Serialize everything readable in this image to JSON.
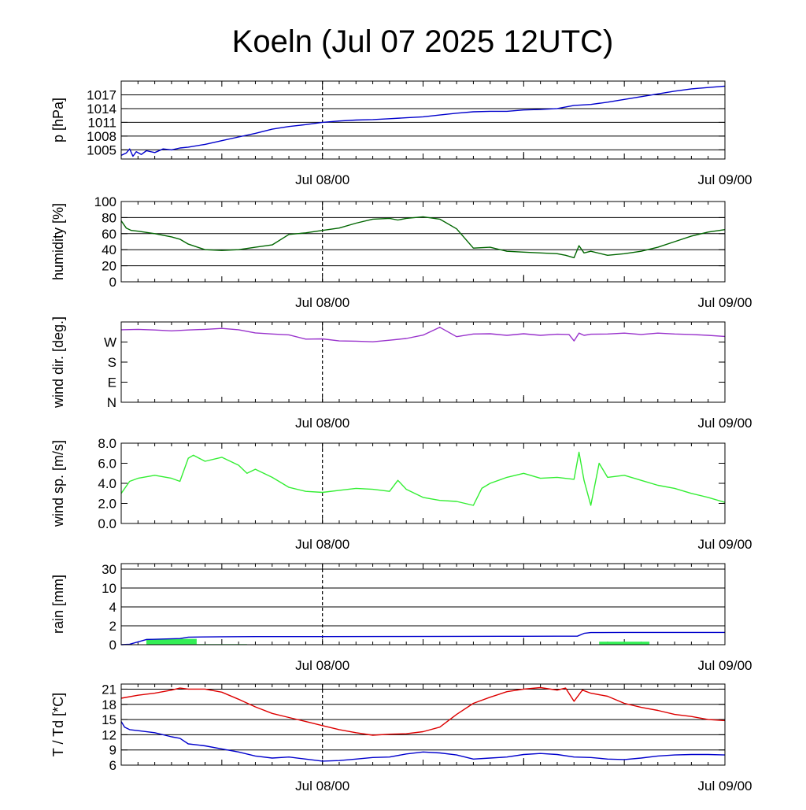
{
  "title": "Koeln (Jul 07 2025 12UTC)",
  "chart_data": [
    {
      "id": "pressure",
      "type": "line",
      "ylabel": "p [hPa]",
      "yticks": [
        "1005",
        "1008",
        "1011",
        "1014",
        "1017"
      ],
      "ytick_values": [
        1005,
        1008,
        1011,
        1014,
        1017
      ],
      "ylim": [
        1003,
        1020
      ],
      "xlim": [
        0,
        36
      ],
      "xtick_labels": [
        "Jul 08/00",
        "Jul 09/00"
      ],
      "xtick_positions": [
        12,
        36
      ],
      "grid": true,
      "series": [
        {
          "color": "#0000cc",
          "x": [
            0,
            0.3,
            0.5,
            0.7,
            0.9,
            1.2,
            1.5,
            2,
            2.5,
            3,
            3.5,
            4,
            5,
            6,
            7,
            8,
            9,
            10,
            11,
            12,
            13,
            14,
            15,
            16,
            17,
            18,
            19,
            20,
            21,
            22,
            23,
            24,
            25,
            26,
            27,
            28,
            29,
            30,
            31,
            32,
            33,
            34,
            35,
            36
          ],
          "y": [
            1003.8,
            1004.3,
            1005.2,
            1003.6,
            1004.6,
            1004.0,
            1004.8,
            1004.4,
            1005.2,
            1005.0,
            1005.4,
            1005.6,
            1006.2,
            1007.0,
            1007.8,
            1008.6,
            1009.5,
            1010.1,
            1010.5,
            1011.0,
            1011.3,
            1011.5,
            1011.6,
            1011.8,
            1012.0,
            1012.2,
            1012.6,
            1013.0,
            1013.3,
            1013.4,
            1013.4,
            1013.7,
            1013.8,
            1014.0,
            1014.7,
            1014.9,
            1015.4,
            1016.0,
            1016.6,
            1017.2,
            1017.8,
            1018.3,
            1018.6,
            1018.9
          ]
        }
      ]
    },
    {
      "id": "humidity",
      "type": "line",
      "ylabel": "humidity [%]",
      "yticks": [
        "0",
        "20",
        "40",
        "60",
        "80",
        "100"
      ],
      "ytick_values": [
        0,
        20,
        40,
        60,
        80,
        100
      ],
      "ylim": [
        0,
        100
      ],
      "xlim": [
        0,
        36
      ],
      "xtick_labels": [
        "Jul 08/00",
        "Jul 09/00"
      ],
      "xtick_positions": [
        12,
        36
      ],
      "grid": true,
      "series": [
        {
          "color": "#006600",
          "x": [
            0,
            0.3,
            0.6,
            1,
            2,
            3,
            3.5,
            4,
            5,
            6,
            7,
            8,
            9,
            10,
            11,
            12,
            13,
            14,
            15,
            16,
            16.5,
            17,
            18,
            19,
            20,
            21,
            22,
            23,
            24,
            25,
            26,
            26.5,
            27,
            27.3,
            27.6,
            28,
            29,
            30,
            31,
            32,
            33,
            34,
            35,
            36
          ],
          "y": [
            76,
            67,
            64,
            63,
            60,
            56,
            53,
            47,
            40,
            39,
            40,
            43,
            46,
            59,
            61,
            64,
            67,
            73,
            78,
            79,
            77,
            79,
            81,
            78,
            66,
            42,
            43,
            38,
            37,
            36,
            35,
            33,
            30,
            45,
            36,
            38,
            33,
            35,
            38,
            43,
            50,
            57,
            62,
            65
          ]
        }
      ]
    },
    {
      "id": "wind_direction",
      "type": "line",
      "ylabel": "wind dir. [deg.]",
      "yticks": [
        "N",
        "E",
        "S",
        "W"
      ],
      "ytick_values": [
        0,
        90,
        180,
        270
      ],
      "ylim": [
        0,
        360
      ],
      "xlim": [
        0,
        36
      ],
      "xtick_labels": [
        "Jul 08/00",
        "Jul 09/00"
      ],
      "xtick_positions": [
        12,
        36
      ],
      "grid": false,
      "series": [
        {
          "color": "#9933cc",
          "x": [
            0,
            1,
            2,
            3,
            4,
            5,
            6,
            7,
            8,
            9,
            10,
            11,
            12,
            13,
            14,
            15,
            16,
            17,
            18,
            19,
            20,
            21,
            22,
            23,
            24,
            25,
            26,
            26.7,
            27,
            27.3,
            27.6,
            28,
            29,
            30,
            31,
            32,
            33,
            34,
            35,
            36
          ],
          "y": [
            325,
            327,
            324,
            320,
            324,
            327,
            331,
            325,
            311,
            306,
            302,
            283,
            284,
            275,
            274,
            271,
            278,
            286,
            301,
            336,
            294,
            306,
            307,
            300,
            307,
            300,
            305,
            304,
            275,
            310,
            300,
            305,
            306,
            310,
            304,
            310,
            306,
            304,
            300,
            295
          ]
        }
      ]
    },
    {
      "id": "wind_speed",
      "type": "line",
      "ylabel": "wind sp. [m/s]",
      "yticks": [
        "0.0",
        "2.0",
        "4.0",
        "6.0",
        "8.0"
      ],
      "ytick_values": [
        0,
        2,
        4,
        6,
        8
      ],
      "ylim": [
        0,
        8
      ],
      "xlim": [
        0,
        36
      ],
      "xtick_labels": [
        "Jul 08/00",
        "Jul 09/00"
      ],
      "xtick_positions": [
        12,
        36
      ],
      "grid": false,
      "series": [
        {
          "color": "#33ee33",
          "x": [
            0,
            0.5,
            1,
            2,
            3,
            3.5,
            4,
            4.3,
            5,
            6,
            7,
            7.5,
            8,
            9,
            10,
            11,
            12,
            13,
            14,
            15,
            16,
            16.5,
            17,
            18,
            19,
            20,
            21,
            21.5,
            22,
            23,
            24,
            25,
            26,
            27,
            27.3,
            27.6,
            28,
            28.5,
            29,
            30,
            31,
            32,
            33,
            34,
            35,
            36
          ],
          "y": [
            3.0,
            4.2,
            4.5,
            4.8,
            4.5,
            4.2,
            6.5,
            6.8,
            6.2,
            6.6,
            5.8,
            5.0,
            5.4,
            4.6,
            3.6,
            3.2,
            3.1,
            3.3,
            3.5,
            3.4,
            3.2,
            4.3,
            3.4,
            2.6,
            2.3,
            2.2,
            1.8,
            3.5,
            4.0,
            4.6,
            5.0,
            4.5,
            4.6,
            4.4,
            7.1,
            4.3,
            1.8,
            6.0,
            4.6,
            4.8,
            4.3,
            3.8,
            3.5,
            3.0,
            2.6,
            2.1
          ]
        }
      ]
    },
    {
      "id": "rain",
      "type": "bar",
      "ylabel": "rain [mm]",
      "yticks": [
        "0",
        "2",
        "4",
        "10",
        "30"
      ],
      "ytick_values": [
        0,
        2,
        4,
        10,
        30
      ],
      "ylim": [
        0,
        30
      ],
      "xlim": [
        0,
        36
      ],
      "xtick_labels": [
        "Jul 08/00",
        "Jul 09/00"
      ],
      "xtick_positions": [
        12,
        36
      ],
      "grid": true,
      "bars": [
        {
          "color": "#33ee55",
          "x0": 1.5,
          "x1": 4.5,
          "value": 0.62
        },
        {
          "color": "#33ee55",
          "x0": 4.5,
          "x1": 7.5,
          "value": 0.06
        },
        {
          "color": "#33ee55",
          "x0": 28.5,
          "x1": 31.5,
          "value": 0.32
        }
      ],
      "series": [
        {
          "color": "#0000cc",
          "x": [
            0,
            0.5,
            1,
            1.5,
            2.5,
            3.5,
            4,
            6,
            8,
            12,
            16,
            20,
            24,
            26,
            27.2,
            27.6,
            28,
            30,
            32,
            36
          ],
          "y": [
            0,
            0.05,
            0.3,
            0.55,
            0.6,
            0.65,
            0.8,
            0.84,
            0.86,
            0.86,
            0.87,
            0.88,
            0.89,
            0.9,
            0.9,
            1.2,
            1.28,
            1.3,
            1.3,
            1.3
          ]
        }
      ]
    },
    {
      "id": "temperature",
      "type": "line",
      "ylabel": "T / Td [*C]",
      "yticks": [
        "6",
        "9",
        "12",
        "15",
        "18",
        "21"
      ],
      "ytick_values": [
        6,
        9,
        12,
        15,
        18,
        21
      ],
      "ylim": [
        6,
        22
      ],
      "xlim": [
        0,
        36
      ],
      "xtick_labels": [
        "Jul 08/00",
        "Jul 09/00"
      ],
      "xtick_positions": [
        12,
        36
      ],
      "grid": true,
      "series": [
        {
          "color": "#dd0000",
          "x": [
            0,
            1,
            2,
            3,
            3.5,
            4,
            5,
            6,
            7,
            8,
            9,
            10,
            11,
            12,
            13,
            14,
            15,
            16,
            17,
            18,
            19,
            20,
            21,
            22,
            23,
            24,
            25,
            26,
            26.5,
            27,
            27.5,
            28,
            29,
            30,
            31,
            32,
            33,
            34,
            35,
            36
          ],
          "y": [
            19.2,
            19.8,
            20.2,
            20.8,
            21.2,
            21.0,
            21.0,
            20.4,
            19.0,
            17.5,
            16.2,
            15.4,
            14.6,
            13.8,
            13.0,
            12.4,
            11.9,
            12.1,
            12.2,
            12.6,
            13.5,
            16.0,
            18.2,
            19.4,
            20.5,
            21.0,
            21.3,
            20.8,
            21.2,
            18.6,
            20.8,
            20.2,
            19.6,
            18.2,
            17.4,
            16.8,
            16.0,
            15.6,
            15.0,
            14.8
          ]
        },
        {
          "color": "#0000cc",
          "x": [
            0,
            0.2,
            0.5,
            1,
            2,
            3,
            3.5,
            4,
            5,
            6,
            7,
            8,
            9,
            10,
            11,
            12,
            13,
            14,
            15,
            16,
            17,
            18,
            19,
            20,
            21,
            22,
            23,
            24,
            25,
            26,
            27,
            28,
            29,
            30,
            31,
            32,
            33,
            34,
            35,
            36
          ],
          "y": [
            14.6,
            13.5,
            13.0,
            12.8,
            12.4,
            11.6,
            11.3,
            10.2,
            9.8,
            9.2,
            8.6,
            7.8,
            7.4,
            7.6,
            7.2,
            6.8,
            6.9,
            7.2,
            7.5,
            7.6,
            8.2,
            8.6,
            8.4,
            8.0,
            7.2,
            7.4,
            7.6,
            8.1,
            8.3,
            8.1,
            7.6,
            7.5,
            7.2,
            7.1,
            7.4,
            7.8,
            8.0,
            8.1,
            8.1,
            8.0
          ]
        }
      ]
    }
  ]
}
